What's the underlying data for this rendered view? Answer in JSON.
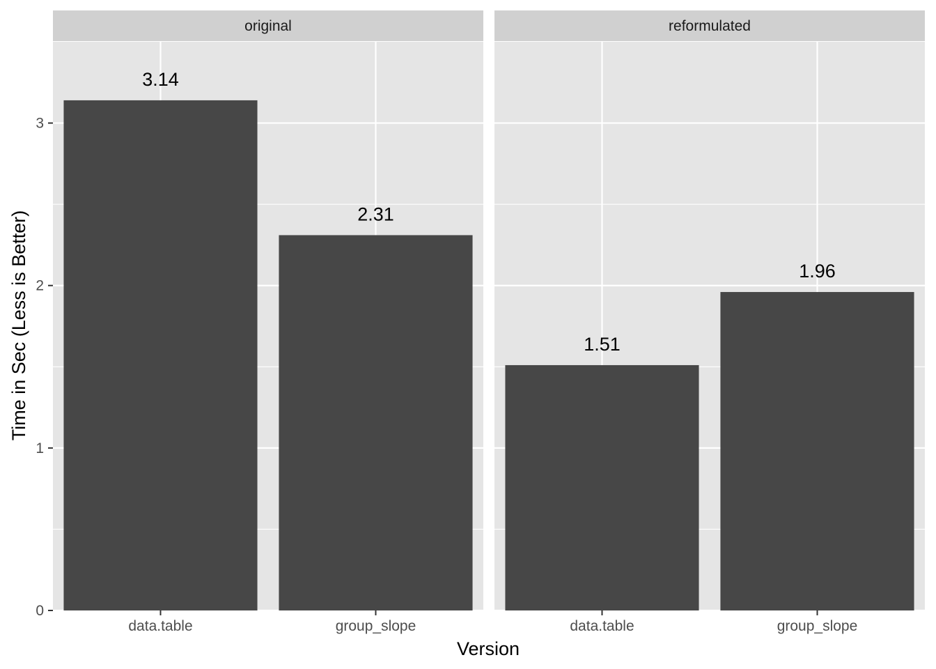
{
  "chart_data": {
    "type": "bar",
    "xlabel": "Version",
    "ylabel": "Time in Sec (Less is Better)",
    "ylim": [
      0,
      3.5
    ],
    "y_ticks": [
      0,
      1,
      2,
      3
    ],
    "grid": true,
    "colors": {
      "bar": "#474747",
      "panel": "#e5e5e5",
      "strip": "#d0d0d0",
      "grid": "#ffffff"
    },
    "facets": [
      {
        "label": "original",
        "categories": [
          "data.table",
          "group_slope"
        ],
        "values": [
          3.14,
          2.31
        ],
        "value_labels": [
          "3.14",
          "2.31"
        ]
      },
      {
        "label": "reformulated",
        "categories": [
          "data.table",
          "group_slope"
        ],
        "values": [
          1.51,
          1.96
        ],
        "value_labels": [
          "1.51",
          "1.96"
        ]
      }
    ]
  }
}
